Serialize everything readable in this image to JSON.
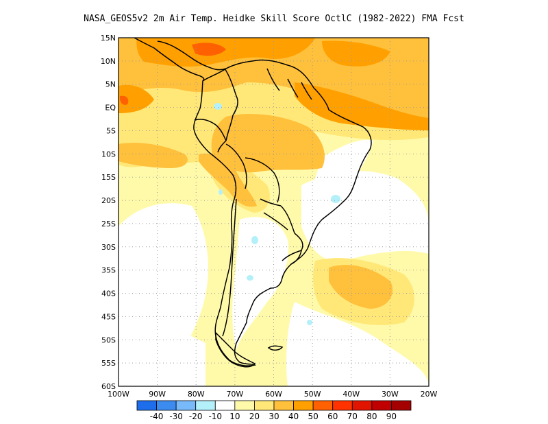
{
  "title": "NASA_GEOS5v2  2m Air Temp. Heidke Skill Score OctlC (1982-2022) FMA Fcst",
  "lat_labels": [
    "15N",
    "10N",
    "5N",
    "EQ",
    "5S",
    "10S",
    "15S",
    "20S",
    "25S",
    "30S",
    "35S",
    "40S",
    "45S",
    "50S",
    "55S",
    "60S"
  ],
  "lon_labels": [
    "100W",
    "90W",
    "80W",
    "70W",
    "60W",
    "50W",
    "40W",
    "30W",
    "20W"
  ],
  "colorbar": {
    "labels": [
      "-40",
      "-30",
      "-20",
      "-10",
      "10",
      "20",
      "30",
      "40",
      "50",
      "60",
      "70",
      "80",
      "90"
    ],
    "colors": [
      "#1e6eeb",
      "#3c8cf0",
      "#78b9fa",
      "#b4f0fa",
      "#ffffff",
      "#fffaaa",
      "#ffe878",
      "#ffc03c",
      "#ffa000",
      "#ff6000",
      "#ff3200",
      "#e11400",
      "#c00000",
      "#a50000"
    ]
  },
  "shading_colors": {
    "level_10_20": "#fffaaa",
    "level_20_30": "#ffe878",
    "level_30_40": "#ffc03c",
    "level_40_50": "#ffa000",
    "level_50_60": "#ff6000",
    "negative_10": "#b4f0fa"
  }
}
